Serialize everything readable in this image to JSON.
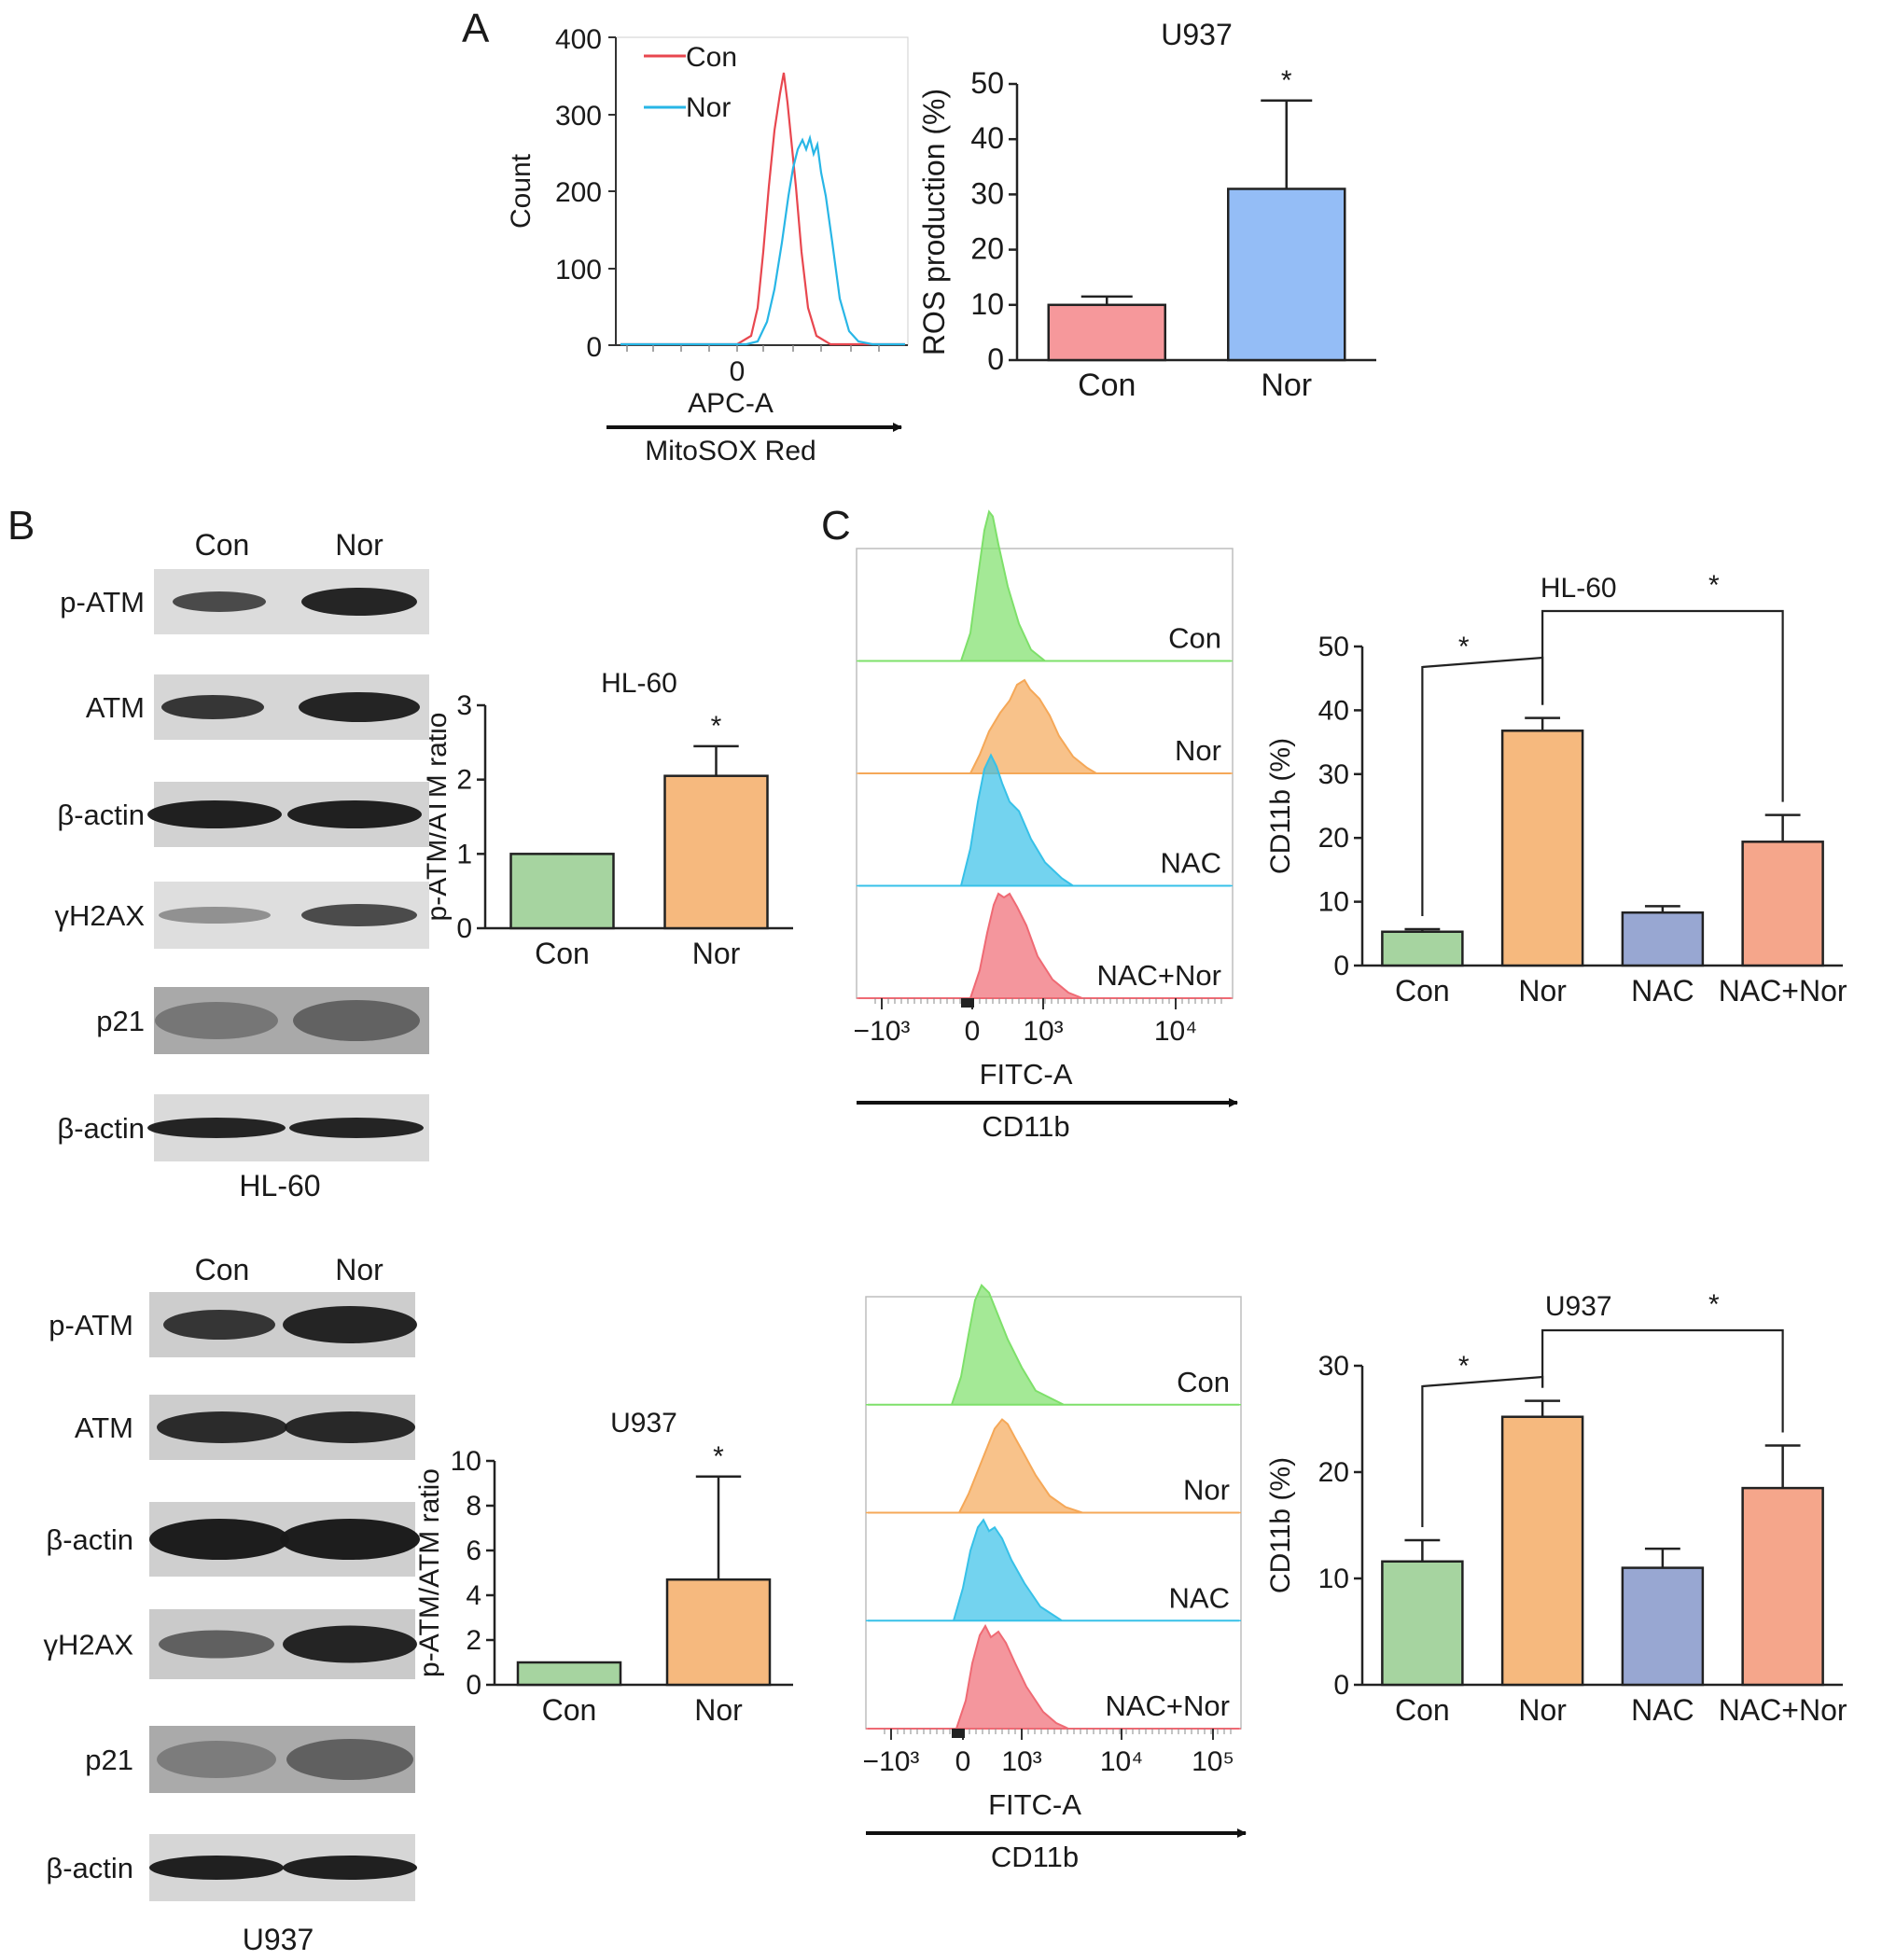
{
  "panels": {
    "A": "A",
    "B": "B",
    "C": "C"
  },
  "flow_A": {
    "xlabel": "APC-A",
    "xsublabel": "MitoSOX Red",
    "ylabel": "Count",
    "yticks": [
      "0",
      "100",
      "200",
      "300",
      "400"
    ],
    "xtick": "0",
    "legend": [
      {
        "name": "Con",
        "color": "#e8474f"
      },
      {
        "name": "Nor",
        "color": "#28b6e6"
      }
    ]
  },
  "wb_HL60": {
    "cell_line": "HL-60",
    "lanes": [
      "Con",
      "Nor"
    ],
    "bands": [
      "p-ATM",
      "ATM",
      "β-actin",
      "γH2AX",
      "p21",
      "β-actin"
    ]
  },
  "wb_U937": {
    "cell_line": "U937",
    "lanes": [
      "Con",
      "Nor"
    ],
    "bands": [
      "p-ATM",
      "ATM",
      "β-actin",
      "γH2AX",
      "p21",
      "β-actin"
    ]
  },
  "flow_C_HL60": {
    "xlabel": "FITC-A",
    "xsublabel": "CD11b",
    "xticks": [
      "−10³",
      "0",
      "10³",
      "10⁴"
    ],
    "tracks": [
      {
        "name": "Con",
        "color": "#7ee06a"
      },
      {
        "name": "Nor",
        "color": "#f5a858"
      },
      {
        "name": "NAC",
        "color": "#37c1e8"
      },
      {
        "name": "NAC+Nor",
        "color": "#ef6a74"
      }
    ]
  },
  "flow_C_U937": {
    "xlabel": "FITC-A",
    "xsublabel": "CD11b",
    "xticks": [
      "−10³",
      "0",
      "10³",
      "10⁴",
      "10⁵"
    ],
    "tracks": [
      {
        "name": "Con",
        "color": "#7ee06a"
      },
      {
        "name": "Nor",
        "color": "#f5a858"
      },
      {
        "name": "NAC",
        "color": "#37c1e8"
      },
      {
        "name": "NAC+Nor",
        "color": "#ef6a74"
      }
    ]
  },
  "chart_data": [
    {
      "id": "ros",
      "type": "bar",
      "title": "U937",
      "ylabel": "ROS production (%)",
      "categories": [
        "Con",
        "Nor"
      ],
      "values": [
        10,
        31
      ],
      "errors": [
        1.5,
        16
      ],
      "colors": [
        "#f6989b",
        "#94bdf6"
      ],
      "ylim": [
        0,
        50
      ],
      "yticks": [
        0,
        10,
        20,
        30,
        40,
        50
      ],
      "significance": [
        {
          "bar": 1,
          "label": "*"
        }
      ]
    },
    {
      "id": "atm_hl60",
      "type": "bar",
      "title": "HL-60",
      "ylabel": "p-ATM/ATM ratio",
      "categories": [
        "Con",
        "Nor"
      ],
      "values": [
        1,
        2.05
      ],
      "errors": [
        0,
        0.4
      ],
      "colors": [
        "#a6d4a0",
        "#f6b97e"
      ],
      "ylim": [
        0,
        3
      ],
      "yticks": [
        0,
        1,
        2,
        3
      ],
      "significance": [
        {
          "bar": 1,
          "label": "*"
        }
      ]
    },
    {
      "id": "atm_u937",
      "type": "bar",
      "title": "U937",
      "ylabel": "p-ATM/ATM ratio",
      "categories": [
        "Con",
        "Nor"
      ],
      "values": [
        1,
        4.7
      ],
      "errors": [
        0,
        4.6
      ],
      "colors": [
        "#a6d4a0",
        "#f6b97e"
      ],
      "ylim": [
        0,
        10
      ],
      "yticks": [
        0,
        2,
        4,
        6,
        8,
        10
      ],
      "significance": [
        {
          "bar": 1,
          "label": "*"
        }
      ]
    },
    {
      "id": "cd11b_hl60",
      "type": "bar",
      "title": "HL-60",
      "ylabel": "CD11b (%)",
      "categories": [
        "Con",
        "Nor",
        "NAC",
        "NAC+Nor"
      ],
      "values": [
        5.3,
        36.8,
        8.3,
        19.4
      ],
      "errors": [
        0.4,
        2,
        1,
        4.2
      ],
      "colors": [
        "#a6d4a0",
        "#f6b97e",
        "#98a7d2",
        "#f5a68b"
      ],
      "ylim": [
        0,
        50
      ],
      "yticks": [
        0,
        10,
        20,
        30,
        40,
        50
      ],
      "brackets": [
        {
          "from": 0,
          "to": 1,
          "label": "*"
        },
        {
          "from": 1,
          "to": 3,
          "label": "*"
        }
      ]
    },
    {
      "id": "cd11b_u937",
      "type": "bar",
      "title": "U937",
      "ylabel": "CD11b (%)",
      "categories": [
        "Con",
        "Nor",
        "NAC",
        "NAC+Nor"
      ],
      "values": [
        11.6,
        25.2,
        11,
        18.5
      ],
      "errors": [
        2,
        1.5,
        1.8,
        4
      ],
      "colors": [
        "#a6d4a0",
        "#f6b97e",
        "#98a7d2",
        "#f5a68b"
      ],
      "ylim": [
        0,
        30
      ],
      "yticks": [
        0,
        10,
        20,
        30
      ],
      "brackets": [
        {
          "from": 0,
          "to": 1,
          "label": "*"
        },
        {
          "from": 1,
          "to": 3,
          "label": "*"
        }
      ]
    }
  ]
}
